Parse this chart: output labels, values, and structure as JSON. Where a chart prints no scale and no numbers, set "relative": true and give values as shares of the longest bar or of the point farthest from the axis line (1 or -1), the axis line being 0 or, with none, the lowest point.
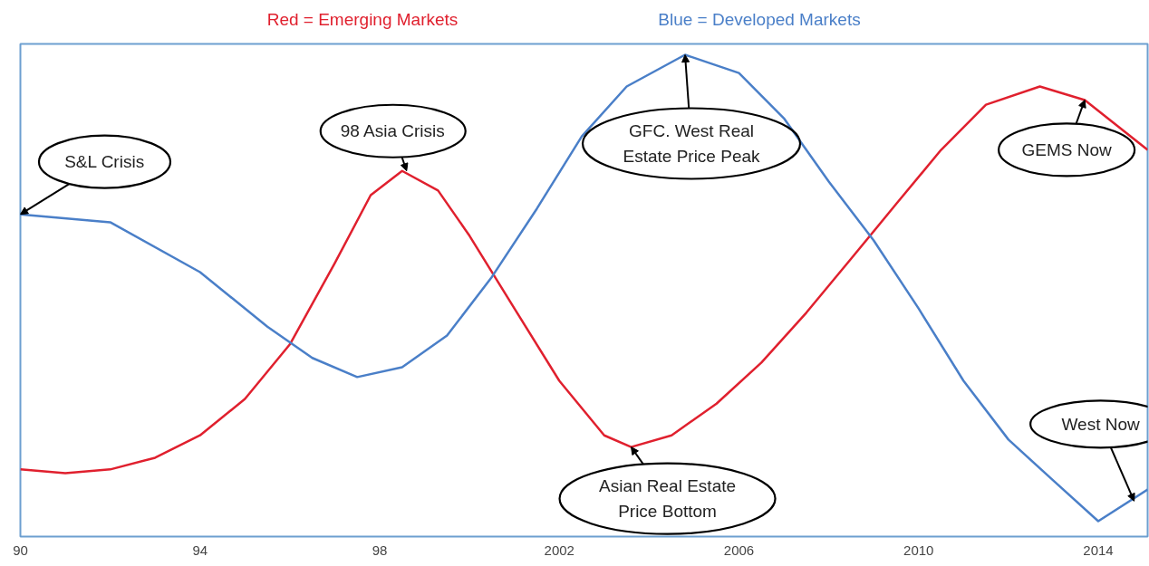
{
  "chart_data": {
    "type": "line",
    "relative": true,
    "grid": false,
    "marker": "none",
    "line_style": "solid",
    "xlim": [
      1990,
      2015.1
    ],
    "xticks": [
      {
        "value": 1990,
        "label": "90"
      },
      {
        "value": 1994,
        "label": "94"
      },
      {
        "value": 1998,
        "label": "98"
      },
      2002,
      2006,
      2010,
      2014
    ],
    "series": [
      {
        "name": "Red = Emerging Markets",
        "color": "#e0202e",
        "x": [
          1990,
          1991,
          1992,
          1993,
          1994,
          1995,
          1996,
          1997,
          1997.8,
          1998.5,
          1999.3,
          2000,
          2001,
          2002,
          2003,
          2003.6,
          2004.5,
          2005.5,
          2006.5,
          2007.5,
          2008.5,
          2009.5,
          2010.5,
          2011.5,
          2012.7,
          2013.7,
          2015.1
        ],
        "values": [
          0.111,
          0.103,
          0.111,
          0.136,
          0.184,
          0.262,
          0.379,
          0.553,
          0.699,
          0.751,
          0.709,
          0.612,
          0.456,
          0.301,
          0.184,
          0.159,
          0.184,
          0.252,
          0.34,
          0.447,
          0.563,
          0.68,
          0.796,
          0.893,
          0.932,
          0.903,
          0.796
        ]
      },
      {
        "name": "Blue = Developed Markets",
        "color": "#4a7fc8",
        "x": [
          1990,
          1992,
          1994,
          1995.5,
          1996.5,
          1997.5,
          1998.5,
          1999.5,
          2000.5,
          2001.5,
          2002.5,
          2003.5,
          2004.8,
          2006,
          2007,
          2008,
          2009,
          2010,
          2011,
          2012,
          2013,
          2014,
          2015.1
        ],
        "values": [
          0.658,
          0.641,
          0.534,
          0.417,
          0.35,
          0.309,
          0.33,
          0.398,
          0.524,
          0.67,
          0.825,
          0.932,
          1.0,
          0.961,
          0.864,
          0.728,
          0.602,
          0.456,
          0.301,
          0.175,
          0.087,
          0,
          0.068
        ]
      }
    ],
    "annotations": [
      {
        "text": "S&L Crisis",
        "x": 1990,
        "y": 0.658
      },
      {
        "text": "98 Asia Crisis",
        "x": 1998.6,
        "y": 0.751
      },
      {
        "text": "GFC. West Real\nEstate Price Peak",
        "x": 2004.8,
        "y": 1.0
      },
      {
        "text": "Asian Real Estate\nPrice Bottom",
        "x": 2003.6,
        "y": 0.159
      },
      {
        "text": "GEMS Now",
        "x": 2013.7,
        "y": 0.903
      },
      {
        "text": "West Now",
        "x": 2014.8,
        "y": 0.043
      }
    ]
  }
}
